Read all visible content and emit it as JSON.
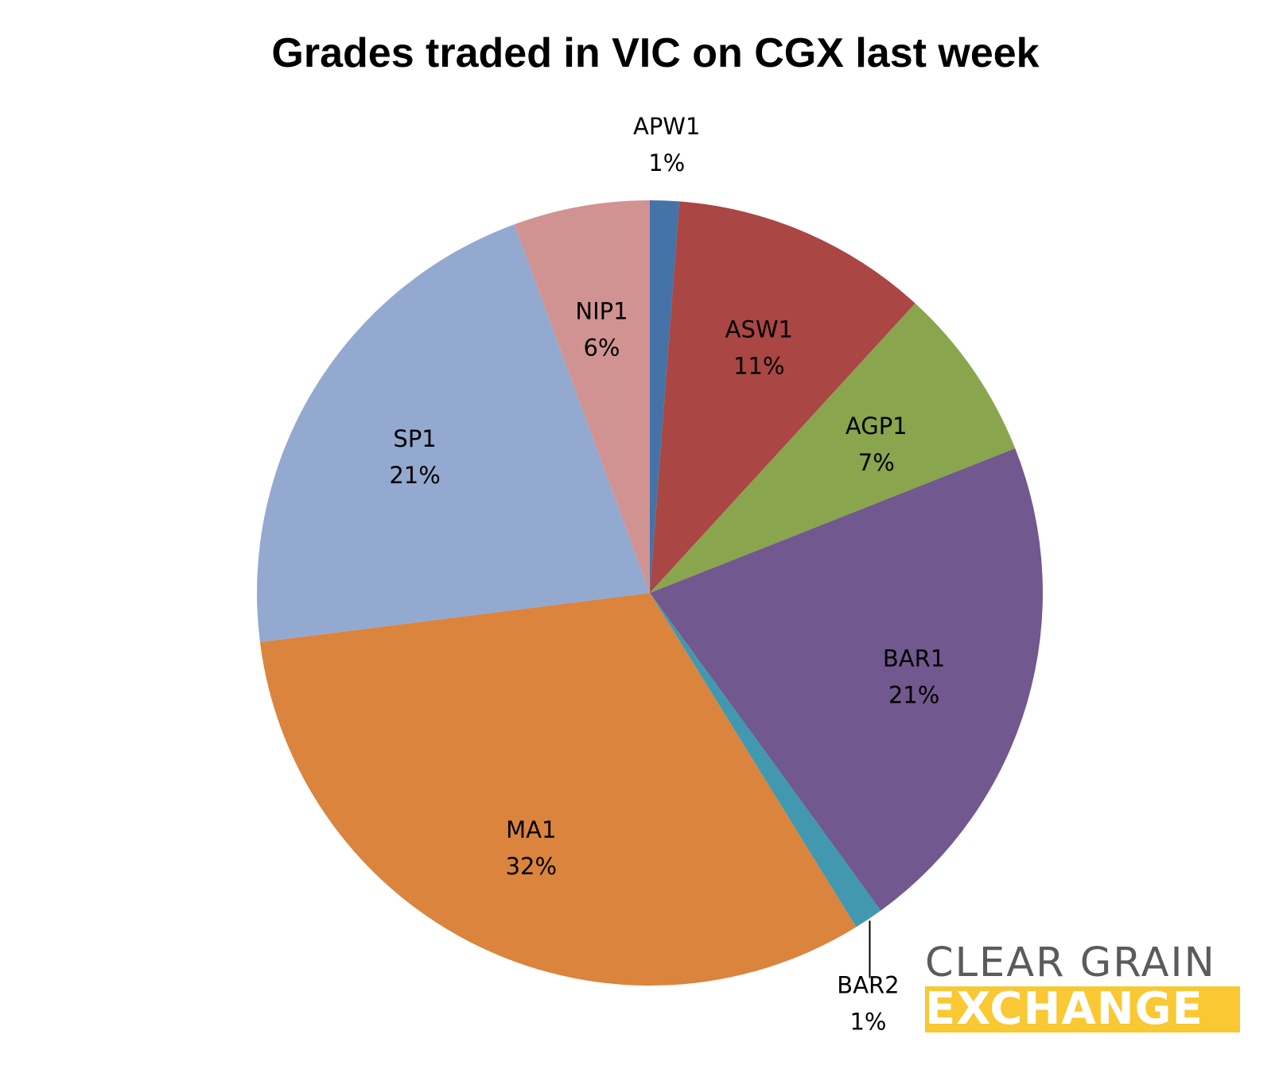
{
  "chart_data": {
    "type": "pie",
    "title": "Grades traded in VIC on CGX last week",
    "start_angle_deg": 0,
    "direction": "clockwise",
    "slices": [
      {
        "label": "APW1",
        "value": 1.2,
        "display": "1%",
        "color": "#4572a7"
      },
      {
        "label": "ASW1",
        "value": 10.6,
        "display": "11%",
        "color": "#aa4643"
      },
      {
        "label": "AGP1",
        "value": 7.2,
        "display": "7%",
        "color": "#89a54e"
      },
      {
        "label": "BAR1",
        "value": 21.0,
        "display": "21%",
        "color": "#71588f"
      },
      {
        "label": "BAR2",
        "value": 1.2,
        "display": "1%",
        "color": "#4198af"
      },
      {
        "label": "MA1",
        "value": 31.8,
        "display": "32%",
        "color": "#db843d"
      },
      {
        "label": "SP1",
        "value": 21.4,
        "display": "21%",
        "color": "#93a9cf"
      },
      {
        "label": "NIP1",
        "value": 5.6,
        "display": "6%",
        "color": "#d19392"
      }
    ]
  },
  "logo": {
    "line1": "CLEAR GRAIN",
    "line2": "EXCHANGE",
    "line1_color": "#5b5b5b",
    "line2_background": "#f9c832"
  }
}
